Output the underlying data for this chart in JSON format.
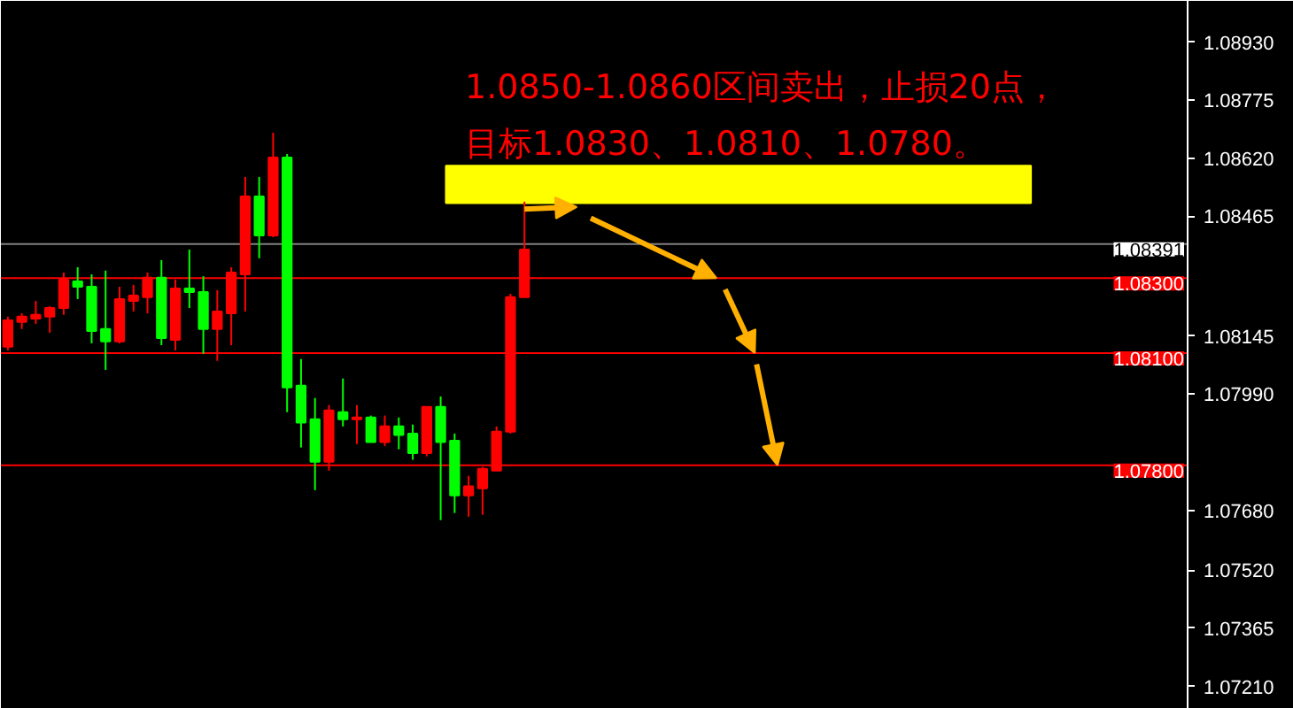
{
  "chart_data": {
    "type": "candlestick",
    "annotations": [
      "1.0850-1.0860区间卖出，止损20点，",
      "目标1.0830、1.0810、1.0780。"
    ],
    "categories": [
      null,
      null,
      null,
      null,
      null,
      null,
      null,
      null,
      null,
      null,
      null,
      null,
      null,
      null,
      null,
      null,
      null,
      null,
      null,
      null,
      null,
      null,
      null,
      null,
      null,
      null,
      null,
      null,
      null,
      null,
      null,
      null,
      null,
      null,
      null,
      null,
      null,
      null,
      null,
      null,
      null,
      null,
      null,
      null,
      null,
      null,
      null,
      null,
      null,
      null,
      null,
      null,
      null,
      null,
      null,
      null,
      null,
      null,
      null,
      null,
      null,
      null,
      null,
      null,
      null,
      null,
      null,
      null,
      null,
      null,
      null,
      null,
      null,
      null,
      null,
      null,
      null,
      null,
      null,
      null,
      null,
      null,
      null,
      null,
      null
    ],
    "ohlc": [
      [
        1.08117,
        1.08197,
        1.08107,
        1.08187
      ],
      [
        1.08183,
        1.08206,
        1.08164,
        1.08197
      ],
      [
        1.08192,
        1.08239,
        1.08178,
        1.08202
      ],
      [
        1.08197,
        1.08225,
        1.08154,
        1.0822
      ],
      [
        1.0822,
        1.08315,
        1.08202,
        1.08296
      ],
      [
        1.08291,
        1.08329,
        1.08244,
        1.08277
      ],
      [
        1.08277,
        1.0831,
        1.08126,
        1.08159
      ],
      [
        1.08164,
        1.0832,
        1.08055,
        1.08131
      ],
      [
        1.08131,
        1.08277,
        1.08126,
        1.08244
      ],
      [
        1.08239,
        1.08282,
        1.08211,
        1.08253
      ],
      [
        1.08249,
        1.08315,
        1.08206,
        1.08301
      ],
      [
        1.08301,
        1.08348,
        1.08121,
        1.0814
      ],
      [
        1.08135,
        1.08296,
        1.08107,
        1.08272
      ],
      [
        1.08272,
        1.08376,
        1.0822,
        1.08263
      ],
      [
        1.08263,
        1.08305,
        1.08098,
        1.08164
      ],
      [
        1.08164,
        1.08268,
        1.08079,
        1.08211
      ],
      [
        1.08206,
        1.08329,
        1.08121,
        1.08315
      ],
      [
        1.0831,
        1.0857,
        1.08211,
        1.08518
      ],
      [
        1.08518,
        1.0857,
        1.08353,
        1.08414
      ],
      [
        1.08414,
        1.08688,
        1.08409,
        1.08622
      ],
      [
        1.08622,
        1.08631,
        1.07942,
        1.08008
      ],
      [
        1.08013,
        1.08084,
        1.07848,
        1.07914
      ],
      [
        1.07923,
        1.0798,
        1.07734,
        1.0781
      ],
      [
        1.0781,
        1.07961,
        1.07786,
        1.07947
      ],
      [
        1.07942,
        1.08032,
        1.07904,
        1.07923
      ],
      [
        1.07923,
        1.07961,
        1.07857,
        1.07928
      ],
      [
        1.07928,
        1.07933,
        1.07862,
        1.07862
      ],
      [
        1.07862,
        1.07933,
        1.07852,
        1.07904
      ],
      [
        1.07904,
        1.07928,
        1.07843,
        1.07881
      ],
      [
        1.07885,
        1.07909,
        1.07815,
        1.07833
      ],
      [
        1.07833,
        1.07956,
        1.07824,
        1.07956
      ],
      [
        1.07956,
        1.07984,
        1.07654,
        1.07862
      ],
      [
        1.07866,
        1.07885,
        1.07673,
        1.0772
      ],
      [
        1.0772,
        1.07772,
        1.07663,
        1.07744
      ],
      [
        1.07739,
        1.07796,
        1.07668,
        1.07791
      ],
      [
        1.07786,
        1.07904,
        1.07786,
        1.0789
      ],
      [
        1.0789,
        1.08258,
        1.07885,
        1.08249
      ],
      [
        1.08249,
        1.08504,
        1.08249,
        1.08376
      ],
      null,
      null,
      null,
      null,
      null,
      null,
      null,
      null,
      null,
      null,
      null,
      null,
      null,
      null,
      null,
      null,
      null,
      null,
      null,
      null,
      null,
      null,
      null,
      null,
      null,
      null,
      null,
      null,
      null,
      null,
      null,
      null,
      null,
      null,
      null,
      null,
      null,
      null,
      null,
      null,
      null,
      null,
      null,
      null,
      null,
      null,
      null
    ],
    "colors": [
      "#ff0000",
      "#ff0000",
      "#ff0000",
      "#ff0000",
      "#ff0000",
      "#00ff00",
      "#00ff00",
      "#00ff00",
      "#ff0000",
      "#ff0000",
      "#ff0000",
      "#00ff00",
      "#ff0000",
      "#00ff00",
      "#00ff00",
      "#ff0000",
      "#ff0000",
      "#ff0000",
      "#00ff00",
      "#ff0000",
      "#00ff00",
      "#00ff00",
      "#00ff00",
      "#ff0000",
      "#00ff00",
      "#ff0000",
      "#00ff00",
      "#ff0000",
      "#00ff00",
      "#00ff00",
      "#ff0000",
      "#00ff00",
      "#00ff00",
      "#ff0000",
      "#ff0000",
      "#ff0000",
      "#ff0000",
      "#ff0000",
      null,
      null,
      null,
      null,
      null,
      null,
      null,
      null,
      null,
      null,
      null,
      null,
      null,
      null,
      null,
      null,
      null,
      null,
      null,
      null,
      null,
      null,
      null,
      null,
      null,
      null,
      null,
      null,
      null,
      null,
      null,
      null,
      null,
      null,
      null,
      null,
      null,
      null,
      null,
      null,
      null,
      null,
      null,
      null,
      null,
      null,
      null
    ],
    "ylim": [
      1.0715,
      1.0904
    ],
    "yticks": [
      {
        "value": 1.0893,
        "label": "1.08930"
      },
      {
        "value": 1.08775,
        "label": "1.08775"
      },
      {
        "value": 1.0862,
        "label": "1.08620"
      },
      {
        "value": 1.08465,
        "label": "1.08465"
      },
      {
        "value": 1.08145,
        "label": "1.08145"
      },
      {
        "value": 1.0799,
        "label": "1.07990"
      },
      {
        "value": 1.0768,
        "label": "1.07680"
      },
      {
        "value": 1.0752,
        "label": "1.07520"
      },
      {
        "value": 1.07365,
        "label": "1.07365"
      },
      {
        "value": 1.0721,
        "label": "1.07210"
      }
    ],
    "tick_labels": "y",
    "ref_lines": [
      {
        "axis": "y",
        "value": 1.08391,
        "label": "1.08391",
        "color": "#808080"
      },
      {
        "axis": "y",
        "value": 1.083,
        "label": "1.08300",
        "color": "#ff0000"
      },
      {
        "axis": "y",
        "value": 1.081,
        "label": "1.08100",
        "color": "#ff0000"
      },
      {
        "axis": "y",
        "value": 1.078,
        "label": "1.07800",
        "color": "#ff0000"
      }
    ],
    "bands": [
      {
        "axis": "y",
        "from": 1.085,
        "to": 1.086,
        "color": "#ffff00"
      }
    ]
  }
}
